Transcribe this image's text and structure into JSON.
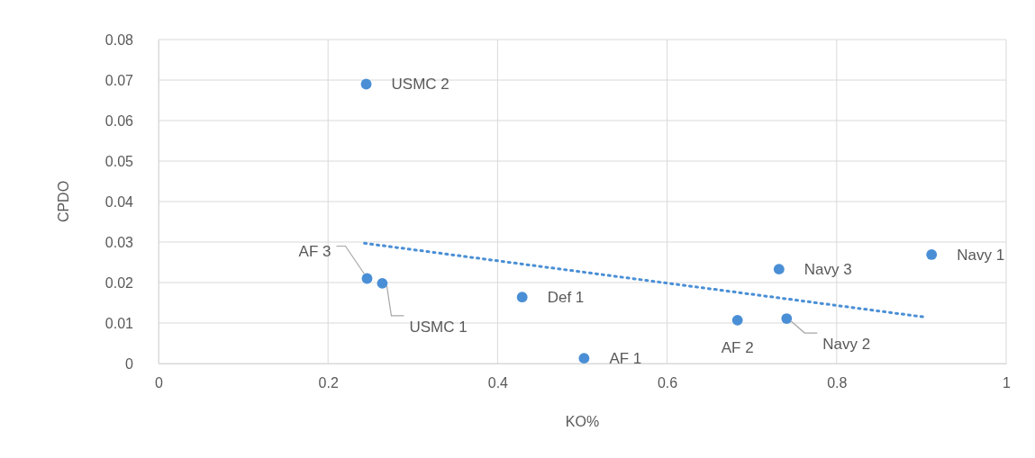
{
  "chart_data": {
    "type": "scatter",
    "xlabel": "KO%",
    "ylabel": "CPDO",
    "xlim": [
      0,
      1
    ],
    "ylim": [
      0,
      0.08
    ],
    "xticks": [
      0,
      0.2,
      0.4,
      0.6,
      0.8,
      1
    ],
    "yticks": [
      {
        "value": 0,
        "label": "0"
      },
      {
        "value": 0.01,
        "label": "0.01"
      },
      {
        "value": 0.02,
        "label": "0.02"
      },
      {
        "value": 0.03,
        "label": "0.03"
      },
      {
        "value": 0.04,
        "label": "0.04"
      },
      {
        "value": 0.05,
        "label": "0.05"
      },
      {
        "value": 0.06,
        "label": "0.06"
      },
      {
        "value": 0.07,
        "label": "0.07"
      },
      {
        "value": 0.08,
        "label": "0.08"
      }
    ],
    "grid": true,
    "series": [
      {
        "marker": "circle",
        "color": "#4a8fd6",
        "x": [
          0.245,
          0.246,
          0.264,
          0.429,
          0.502,
          0.683,
          0.741,
          0.732,
          0.912
        ],
        "values": [
          0.069,
          0.021,
          0.0198,
          0.0164,
          0.0013,
          0.0107,
          0.0111,
          0.0233,
          0.0269
        ]
      },
      {
        "type": "line",
        "color": "#4a8fd6",
        "line_style": "dotted",
        "x": [
          0.243,
          0.903
        ],
        "values": [
          0.0297,
          0.0115
        ]
      }
    ],
    "annotations": [
      {
        "text": "USMC 2",
        "x": 0.245,
        "y": 0.069
      },
      {
        "text": "AF 3",
        "x": 0.246,
        "y": 0.021
      },
      {
        "text": "USMC 1",
        "x": 0.264,
        "y": 0.0198
      },
      {
        "text": "Def 1",
        "x": 0.429,
        "y": 0.0164
      },
      {
        "text": "AF 1",
        "x": 0.502,
        "y": 0.0013
      },
      {
        "text": "AF 2",
        "x": 0.683,
        "y": 0.0107
      },
      {
        "text": "Navy 2",
        "x": 0.741,
        "y": 0.0111
      },
      {
        "text": "Navy 3",
        "x": 0.732,
        "y": 0.0233
      },
      {
        "text": "Navy 1",
        "x": 0.912,
        "y": 0.0269
      }
    ]
  }
}
